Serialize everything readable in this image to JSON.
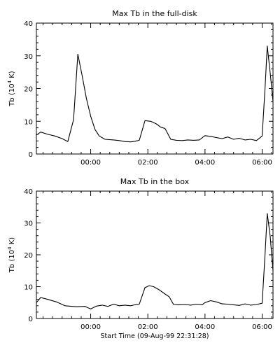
{
  "chart_data": [
    {
      "type": "line",
      "title": "Max Tb in the full-disk",
      "ylabel": {
        "pre": "Tb (10",
        "sup": "4",
        "post": " K)"
      },
      "xlabel": "",
      "xlim": [
        -1.9,
        6.38
      ],
      "ylim": [
        0,
        40
      ],
      "xtick_values": [
        0,
        2,
        4,
        6
      ],
      "xtick_labels": [
        "00:00",
        "02:00",
        "04:00",
        "06:00"
      ],
      "ytick_values": [
        0,
        10,
        20,
        30,
        40
      ],
      "ytick_labels": [
        "0",
        "10",
        "20",
        "30",
        "40"
      ],
      "grid": false,
      "legend": "none",
      "x_unit": "hours from 00:00",
      "series": [
        {
          "x": [
            -1.9,
            -1.75,
            -1.5,
            -1.25,
            -1.0,
            -0.8,
            -0.6,
            -0.45,
            -0.3,
            -0.15,
            0.0,
            0.15,
            0.3,
            0.5,
            0.8,
            1.0,
            1.2,
            1.4,
            1.55,
            1.7,
            1.9,
            2.1,
            2.3,
            2.45,
            2.6,
            2.8,
            3.0,
            3.2,
            3.4,
            3.6,
            3.8,
            4.0,
            4.2,
            4.4,
            4.6,
            4.8,
            5.0,
            5.2,
            5.4,
            5.6,
            5.8,
            6.0,
            6.1,
            6.18,
            6.28,
            6.38
          ],
          "y": [
            5.8,
            6.7,
            6.0,
            5.5,
            4.7,
            3.8,
            10.5,
            30.5,
            24.0,
            17.0,
            11.5,
            7.5,
            5.5,
            4.5,
            4.3,
            4.1,
            3.8,
            3.7,
            3.9,
            4.2,
            10.2,
            10.0,
            9.2,
            8.2,
            7.8,
            4.5,
            4.2,
            4.1,
            4.3,
            4.2,
            4.3,
            5.6,
            5.4,
            5.0,
            4.7,
            5.2,
            4.5,
            4.8,
            4.3,
            4.5,
            4.1,
            5.5,
            20.0,
            33.0,
            25.0,
            16.0
          ]
        }
      ]
    },
    {
      "type": "line",
      "title": "Max Tb in the box",
      "ylabel": {
        "pre": "Tb (10",
        "sup": "4",
        "post": " K)"
      },
      "xlabel": "Start Time (09-Aug-99 22:31:28)",
      "xlim": [
        -1.9,
        6.38
      ],
      "ylim": [
        0,
        40
      ],
      "xtick_values": [
        0,
        2,
        4,
        6
      ],
      "xtick_labels": [
        "00:00",
        "02:00",
        "04:00",
        "06:00"
      ],
      "ytick_values": [
        0,
        10,
        20,
        30,
        40
      ],
      "ytick_labels": [
        "0",
        "10",
        "20",
        "30",
        "40"
      ],
      "grid": false,
      "legend": "none",
      "x_unit": "hours from 00:00",
      "series": [
        {
          "x": [
            -1.9,
            -1.75,
            -1.5,
            -1.2,
            -0.9,
            -0.5,
            -0.2,
            0.0,
            0.2,
            0.4,
            0.6,
            0.8,
            1.0,
            1.2,
            1.4,
            1.55,
            1.7,
            1.9,
            2.05,
            2.2,
            2.4,
            2.6,
            2.75,
            2.9,
            3.1,
            3.3,
            3.5,
            3.7,
            3.9,
            4.0,
            4.2,
            4.4,
            4.6,
            4.8,
            5.0,
            5.2,
            5.4,
            5.6,
            5.8,
            6.0,
            6.1,
            6.18,
            6.28,
            6.38
          ],
          "y": [
            5.0,
            6.6,
            6.0,
            5.2,
            4.0,
            3.7,
            3.8,
            3.0,
            3.9,
            4.2,
            3.8,
            4.5,
            4.0,
            4.2,
            4.0,
            4.3,
            4.5,
            9.7,
            10.3,
            10.0,
            9.0,
            7.7,
            6.8,
            4.4,
            4.3,
            4.4,
            4.2,
            4.5,
            4.3,
            5.0,
            5.6,
            5.2,
            4.6,
            4.5,
            4.3,
            4.1,
            4.6,
            4.2,
            4.4,
            4.8,
            20.0,
            33.0,
            26.0,
            15.0
          ]
        }
      ]
    }
  ]
}
